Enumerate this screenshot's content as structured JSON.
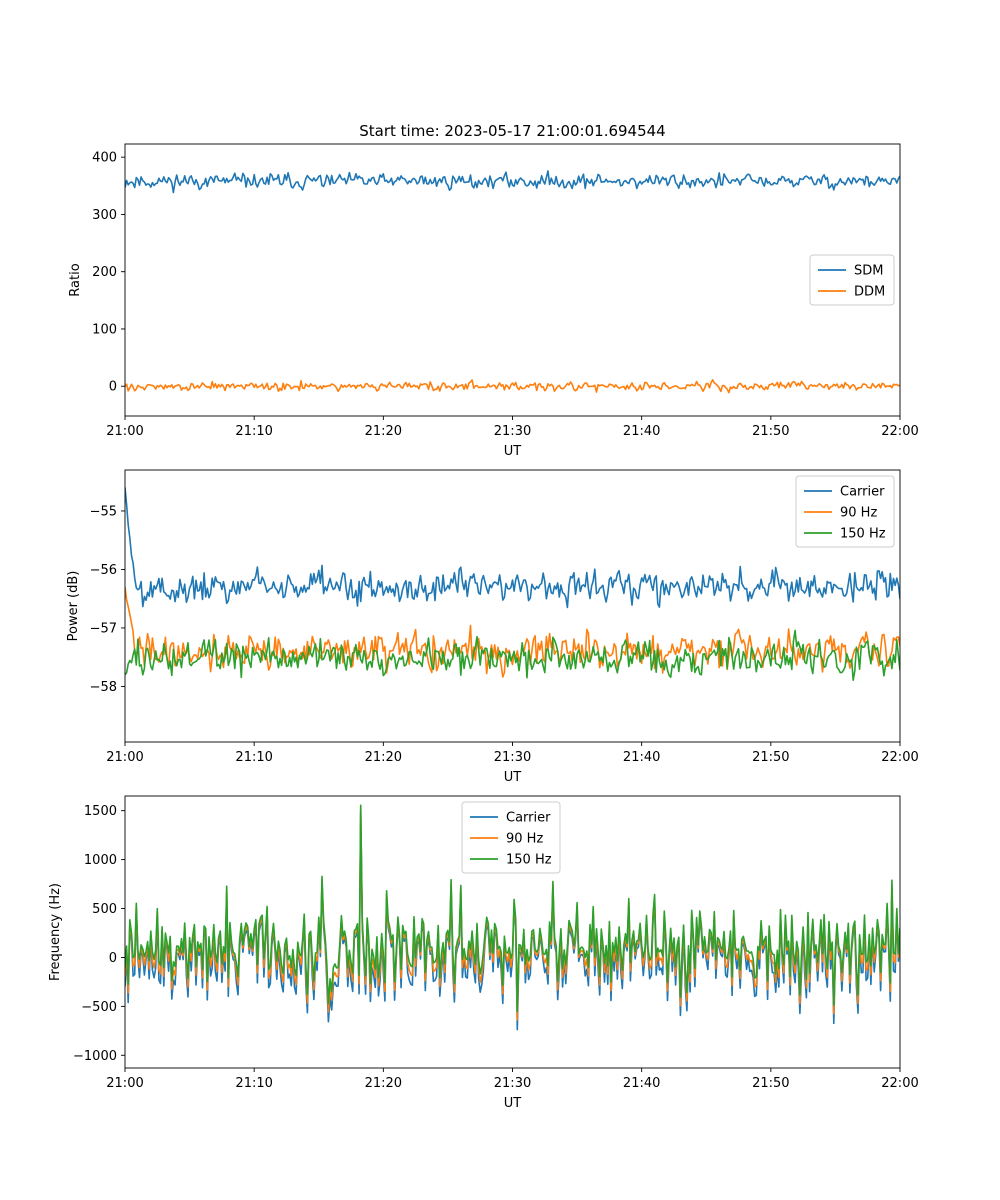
{
  "figure": {
    "title": "Start time: 2023-05-17 21:00:01.694544"
  },
  "chart_data": [
    {
      "type": "line",
      "title": "Start time: 2023-05-17 21:00:01.694544",
      "xlabel": "UT",
      "ylabel": "Ratio",
      "x_ticks": [
        "21:00",
        "21:10",
        "21:20",
        "21:30",
        "21:40",
        "21:50",
        "22:00"
      ],
      "y_ticks": [
        "0",
        "100",
        "200",
        "300",
        "400"
      ],
      "xlim_minutes": [
        0,
        60
      ],
      "ylim": [
        -52,
        423
      ],
      "legend_position": "center-right",
      "series": [
        {
          "name": "SDM",
          "color": "#1f77b4",
          "mean": 358,
          "spread": 16,
          "noise_seed": 11
        },
        {
          "name": "DDM",
          "color": "#ff7f0e",
          "mean": 0,
          "spread": 10,
          "noise_seed": 27
        }
      ]
    },
    {
      "type": "line",
      "title": "",
      "xlabel": "UT",
      "ylabel": "Power (dB)",
      "x_ticks": [
        "21:00",
        "21:10",
        "21:20",
        "21:30",
        "21:40",
        "21:50",
        "22:00"
      ],
      "y_ticks": [
        "−58",
        "−57",
        "−56",
        "−55"
      ],
      "xlim_minutes": [
        0,
        60
      ],
      "ylim": [
        -58.95,
        -54.3
      ],
      "legend_position": "top-right",
      "series": [
        {
          "name": "Carrier",
          "color": "#1f77b4",
          "mean": -56.3,
          "spread": 0.35,
          "start_value": -54.6,
          "noise_seed": 5
        },
        {
          "name": "90 Hz",
          "color": "#ff7f0e",
          "mean": -57.4,
          "spread": 0.38,
          "start_value": -56.3,
          "noise_seed": 41
        },
        {
          "name": "150 Hz",
          "color": "#2ca02c",
          "mean": -57.5,
          "spread": 0.38,
          "start_value": -57.8,
          "noise_seed": 73
        }
      ]
    },
    {
      "type": "line",
      "title": "",
      "xlabel": "UT",
      "ylabel": "Frequency (Hz)",
      "x_ticks": [
        "21:00",
        "21:10",
        "21:20",
        "21:30",
        "21:40",
        "21:50",
        "22:00"
      ],
      "y_ticks": [
        "−1000",
        "−500",
        "0",
        "500",
        "1000",
        "1500"
      ],
      "xlim_minutes": [
        0,
        60
      ],
      "ylim": [
        -1130,
        1650
      ],
      "legend_position": "top-center",
      "series": [
        {
          "name": "Carrier",
          "color": "#1f77b4",
          "offset": -40
        },
        {
          "name": "90 Hz",
          "color": "#ff7f0e",
          "offset": 0
        },
        {
          "name": "150 Hz",
          "color": "#2ca02c",
          "offset": 35
        }
      ],
      "shared_mean": 60,
      "shared_spread": 330,
      "noise_seed": 91,
      "peak": {
        "minute": 18.2,
        "value": 1520
      }
    }
  ]
}
